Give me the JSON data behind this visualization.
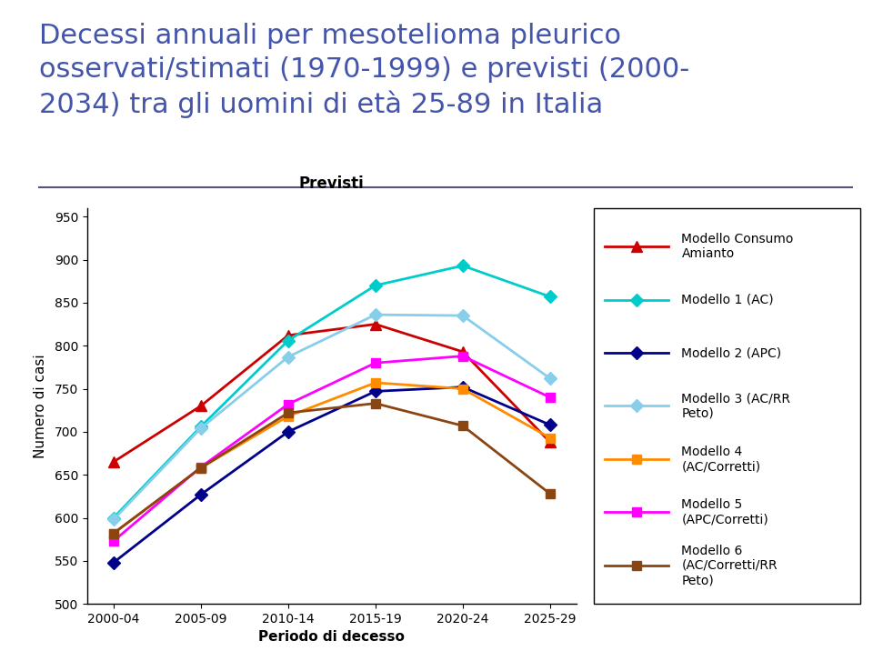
{
  "title_line1": "Decessi annuali per mesotelioma pleurico",
  "title_line2": "osservati/stimati (1970-1999) e previsti (2000-",
  "title_line3": "2034) tra gli uomini di età 25-89 in Italia",
  "subtitle": "Previsti",
  "xlabel": "Periodo di decesso",
  "ylabel": "Numero di casi",
  "x_labels": [
    "2000-04",
    "2005-09",
    "2010-14",
    "2015-19",
    "2020-24",
    "2025-29"
  ],
  "x_values": [
    0,
    1,
    2,
    3,
    4,
    5
  ],
  "ylim": [
    500,
    960
  ],
  "yticks": [
    500,
    550,
    600,
    650,
    700,
    750,
    800,
    850,
    900,
    950
  ],
  "series": [
    {
      "name": "Modello Consumo\nAmianto",
      "color": "#CC0000",
      "marker": "^",
      "markersize": 9,
      "values": [
        665,
        730,
        812,
        825,
        793,
        688
      ]
    },
    {
      "name": "Modello 1 (AC)",
      "color": "#00CCCC",
      "marker": "D",
      "markersize": 7,
      "values": [
        600,
        706,
        806,
        870,
        893,
        857
      ]
    },
    {
      "name": "Modello 2 (APC)",
      "color": "#00008B",
      "marker": "D",
      "markersize": 7,
      "values": [
        548,
        627,
        700,
        747,
        752,
        708
      ]
    },
    {
      "name": "Modello 3 (AC/RR\nPeto)",
      "color": "#87CEEB",
      "marker": "D",
      "markersize": 7,
      "values": [
        598,
        704,
        787,
        836,
        835,
        762
      ]
    },
    {
      "name": "Modello 4\n(AC/Corretti)",
      "color": "#FF8C00",
      "marker": "s",
      "markersize": 7,
      "values": [
        582,
        658,
        718,
        757,
        750,
        693
      ]
    },
    {
      "name": "Modello 5\n(APC/Corretti)",
      "color": "#FF00FF",
      "marker": "s",
      "markersize": 7,
      "values": [
        573,
        659,
        732,
        780,
        788,
        740
      ]
    },
    {
      "name": "Modello 6\n(AC/Corretti/RR\nPeto)",
      "color": "#8B4513",
      "marker": "s",
      "markersize": 7,
      "values": [
        582,
        658,
        722,
        733,
        707,
        628
      ]
    }
  ],
  "title_color": "#4455AA",
  "title_fontsize": 22,
  "axis_fontsize": 11,
  "legend_fontsize": 10,
  "yellow_bar_color": "#FFD700",
  "divider_color": "#555577",
  "background_color": "#FFFFFF"
}
